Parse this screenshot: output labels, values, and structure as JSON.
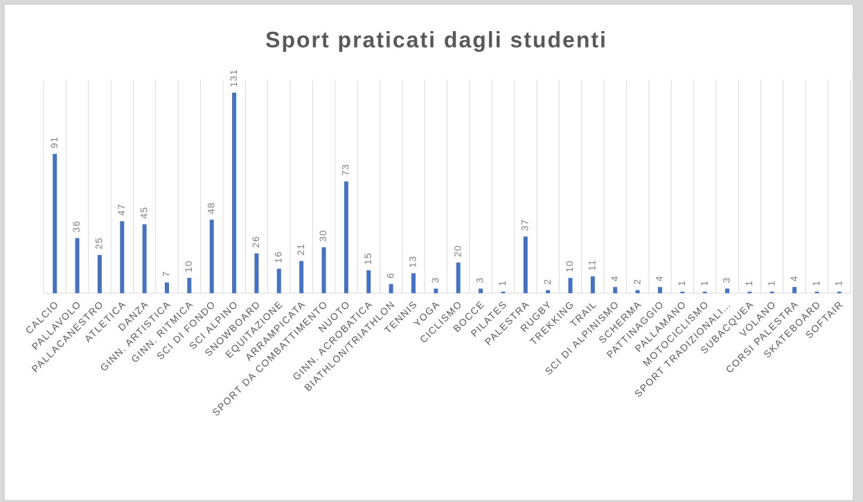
{
  "chart_data": {
    "type": "bar",
    "title": "Sport praticati dagli studenti",
    "categories": [
      "CALCIO",
      "PALLAVOLO",
      "PALLACANESTRO",
      "ATLETICA",
      "DANZA",
      "GINN. ARTISTICA",
      "GINN. RITMICA",
      "SCI DI FONDO",
      "SCI ALPINO",
      "SNOWBOARD",
      "EQUITAZIONE",
      "ARRAMPICATA",
      "SPORT DA COMBATTIMENTO",
      "NUOTO",
      "GINN. ACROBATICA",
      "BIATHLON/TRIATHLON",
      "TENNIS",
      "YOGA",
      "CICLISMO",
      "BOCCE",
      "PILATES",
      "PALESTRA",
      "RUGBY",
      "TREKKING",
      "TRAIL",
      "SCI DI ALPINISMO",
      "SCHERMA",
      "PATTINAGGIO",
      "PALLAMANO",
      "MOTOCICLISMO",
      "SPORT TRADIZIONALI…",
      "SUBACQUEA",
      "VOLANO",
      "CORSI PALESTRA",
      "SKATEBOARD",
      "SOFTAIR"
    ],
    "values": [
      91,
      36,
      25,
      47,
      45,
      7,
      10,
      48,
      131,
      26,
      16,
      21,
      30,
      73,
      15,
      6,
      13,
      3,
      20,
      3,
      1,
      37,
      2,
      10,
      11,
      4,
      2,
      4,
      1,
      1,
      3,
      1,
      1,
      4,
      1,
      1
    ],
    "color": "#4472c4",
    "grid": true
  }
}
